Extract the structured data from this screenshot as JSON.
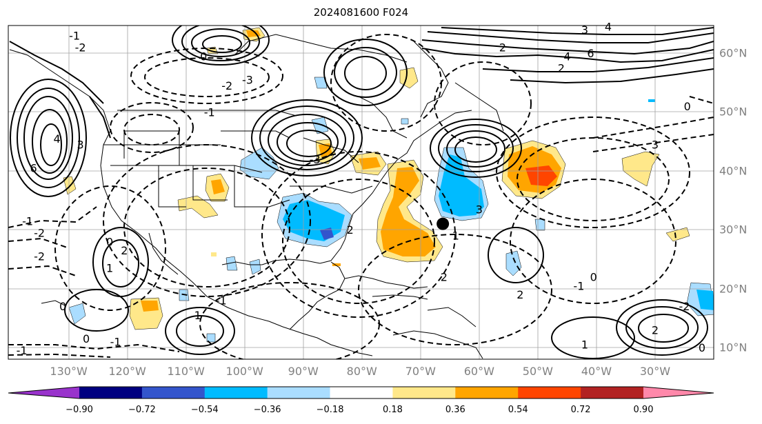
{
  "title": "2024081600 F024",
  "colors": {
    "contour_line": "#000000",
    "grid_line": "#a0a0a0",
    "coast_line": "#000000",
    "marker": "#000000"
  },
  "longitude_labels": [
    "130°W",
    "120°W",
    "110°W",
    "100°W",
    "90°W",
    "80°W",
    "70°W",
    "60°W",
    "50°W",
    "40°W",
    "30°W"
  ],
  "latitude_labels": [
    "60°N",
    "50°N",
    "40°N",
    "30°N",
    "20°N",
    "10°N"
  ],
  "colorbar": {
    "tick_labels": [
      "−0.90",
      "−0.72",
      "−0.54",
      "−0.36",
      "−0.18",
      "0.18",
      "0.36",
      "0.54",
      "0.72",
      "0.90"
    ],
    "colors": [
      "#9933cc",
      "#000080",
      "#3355cc",
      "#00bbff",
      "#aaddff",
      "#ffffff",
      "#ffe88a",
      "#ffa500",
      "#ff4500",
      "#b22222",
      "#ff88aa"
    ]
  },
  "contour_labels": [
    {
      "text": "0",
      "lon": -107,
      "lat": 59.5
    },
    {
      "text": "-2",
      "lon": -128,
      "lat": 61
    },
    {
      "text": "-1",
      "lon": -129,
      "lat": 63
    },
    {
      "text": "-3",
      "lon": -99.5,
      "lat": 55.5
    },
    {
      "text": "-2",
      "lon": -103,
      "lat": 54.5
    },
    {
      "text": "-1",
      "lon": -106,
      "lat": 50
    },
    {
      "text": "4",
      "lon": -132,
      "lat": 45.5
    },
    {
      "text": "6",
      "lon": -136,
      "lat": 40.5
    },
    {
      "text": "3",
      "lon": -128,
      "lat": 44.5
    },
    {
      "text": "-3",
      "lon": -88,
      "lat": 42
    },
    {
      "text": "-1",
      "lon": -137,
      "lat": 31.5
    },
    {
      "text": "-2",
      "lon": -135,
      "lat": 29.5
    },
    {
      "text": "0",
      "lon": -123,
      "lat": 28
    },
    {
      "text": "-2",
      "lon": -135,
      "lat": 25.5
    },
    {
      "text": "2",
      "lon": -120.5,
      "lat": 26.5
    },
    {
      "text": "1",
      "lon": -123,
      "lat": 23.5
    },
    {
      "text": "0",
      "lon": -131,
      "lat": 17
    },
    {
      "text": "-1",
      "lon": -104,
      "lat": 18
    },
    {
      "text": "1",
      "lon": -108,
      "lat": 15.5
    },
    {
      "text": "0",
      "lon": -127,
      "lat": 11.5
    },
    {
      "text": "-1",
      "lon": -122,
      "lat": 11
    },
    {
      "text": "-1",
      "lon": -138,
      "lat": 9.5
    },
    {
      "text": "2",
      "lon": -56,
      "lat": 61
    },
    {
      "text": "2",
      "lon": -46,
      "lat": 57.5
    },
    {
      "text": "4",
      "lon": -45,
      "lat": 59.5
    },
    {
      "text": "6",
      "lon": -41,
      "lat": 60
    },
    {
      "text": "3",
      "lon": -42,
      "lat": 64
    },
    {
      "text": "4",
      "lon": -38,
      "lat": 64.5
    },
    {
      "text": "0",
      "lon": -24.5,
      "lat": 51
    },
    {
      "text": "3",
      "lon": -30,
      "lat": 44.5
    },
    {
      "text": "3",
      "lon": -60,
      "lat": 33.5
    },
    {
      "text": "1",
      "lon": -64,
      "lat": 29
    },
    {
      "text": "2",
      "lon": -66,
      "lat": 22
    },
    {
      "text": "0",
      "lon": -40.5,
      "lat": 22
    },
    {
      "text": "-1",
      "lon": -43,
      "lat": 20.5
    },
    {
      "text": "2",
      "lon": -53,
      "lat": 19
    },
    {
      "text": "1",
      "lon": -42,
      "lat": 10.5
    },
    {
      "text": "2",
      "lon": -30,
      "lat": 13
    },
    {
      "text": "-2",
      "lon": -25,
      "lat": 17
    },
    {
      "text": "0",
      "lon": -22,
      "lat": 10
    },
    {
      "text": "2",
      "lon": -82,
      "lat": 30
    }
  ],
  "marker": {
    "name": "location-marker",
    "lon": -66.2,
    "lat": 31
  }
}
